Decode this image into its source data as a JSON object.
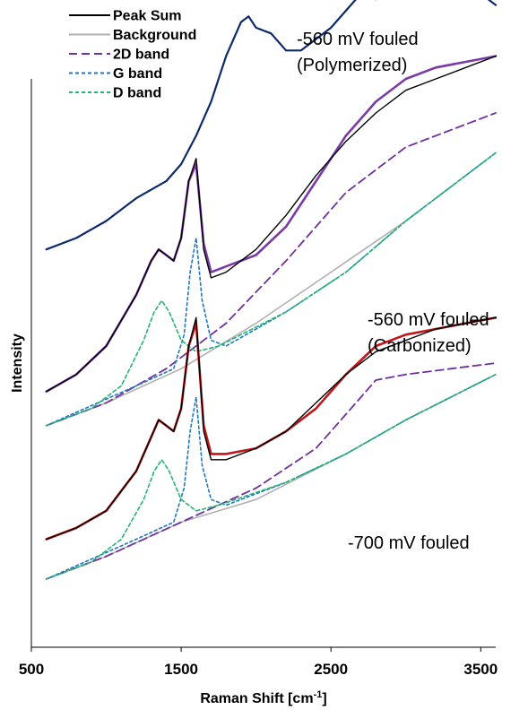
{
  "chart_data": {
    "type": "line",
    "xlabel": "Raman Shift [cm",
    "xlabel_sup": "-1",
    "xlabel_end": "]",
    "ylabel": "Intensity",
    "xlim": [
      500,
      3600
    ],
    "xticks": [
      500,
      1500,
      2500,
      3500
    ],
    "x_tick_labels": [
      "500",
      "1500",
      "2500",
      "3500"
    ],
    "y_ticks_shown": false,
    "legend_position": "top-left",
    "legend": [
      {
        "name": "Peak Sum",
        "color": "#000000",
        "style": "solid"
      },
      {
        "name": "Background",
        "color": "#b0b0b0",
        "style": "solid"
      },
      {
        "name": "2D band",
        "color": "#7030a0",
        "style": "long-dash"
      },
      {
        "name": "G band",
        "color": "#1f77c4",
        "style": "short-dash"
      },
      {
        "name": "D band",
        "color": "#22b573",
        "style": "short-dash"
      }
    ],
    "annotations": [
      {
        "lines": [
          "-560 mV  fouled",
          "(Polymerized)"
        ]
      },
      {
        "lines": [
          "-560 mV  fouled",
          "(Carbonized)"
        ]
      },
      {
        "lines": [
          "-700 mV  fouled"
        ]
      }
    ],
    "colors": {
      "polymerized": "#0d2a6b",
      "carbonized": "#7a3aa8",
      "v700": "#c0161b",
      "peak_sum": "#000000",
      "background": "#b0b0b0",
      "band_2d": "#7030a0",
      "band_g": "#1f77c4",
      "band_d": "#22b573"
    },
    "series": [
      {
        "key": "polymerized",
        "x": [
          600,
          800,
          1000,
          1200,
          1400,
          1500,
          1600,
          1700,
          1800,
          1900,
          1950,
          2000,
          2100,
          2200,
          2300,
          2400,
          2500,
          2600,
          2700,
          2800,
          2900,
          3000,
          3100,
          3200,
          3300,
          3400,
          3500,
          3600
        ],
        "y": [
          0.7,
          0.72,
          0.75,
          0.79,
          0.82,
          0.85,
          0.9,
          0.96,
          1.04,
          1.1,
          1.11,
          1.09,
          1.08,
          1.05,
          1.05,
          1.07,
          1.09,
          1.12,
          1.15,
          1.14,
          1.15,
          1.16,
          1.18,
          1.17,
          1.18,
          1.17,
          1.15,
          1.13
        ]
      },
      {
        "key": "carbonized_data",
        "x": [
          600,
          800,
          1000,
          1200,
          1300,
          1350,
          1400,
          1450,
          1500,
          1550,
          1600,
          1650,
          1700,
          1800,
          2000,
          2200,
          2400,
          2600,
          2800,
          3000,
          3200,
          3400,
          3600
        ],
        "y": [
          0.45,
          0.48,
          0.53,
          0.62,
          0.68,
          0.7,
          0.69,
          0.68,
          0.72,
          0.82,
          0.85,
          0.71,
          0.66,
          0.67,
          0.69,
          0.74,
          0.82,
          0.9,
          0.96,
          1.0,
          1.02,
          1.03,
          1.04
        ]
      },
      {
        "key": "carbonized_sum",
        "x": [
          600,
          800,
          1000,
          1200,
          1300,
          1350,
          1400,
          1450,
          1500,
          1550,
          1600,
          1650,
          1700,
          1800,
          2000,
          2200,
          2400,
          2600,
          2800,
          3000,
          3200,
          3400,
          3600
        ],
        "y": [
          0.45,
          0.48,
          0.53,
          0.62,
          0.68,
          0.7,
          0.69,
          0.68,
          0.72,
          0.82,
          0.86,
          0.7,
          0.65,
          0.66,
          0.7,
          0.76,
          0.83,
          0.89,
          0.94,
          0.98,
          1.0,
          1.02,
          1.04
        ]
      },
      {
        "key": "carbonized_background",
        "x": [
          600,
          1000,
          1500,
          2000,
          2500,
          3000,
          3600
        ],
        "y": [
          0.39,
          0.43,
          0.49,
          0.57,
          0.66,
          0.75,
          0.87
        ]
      },
      {
        "key": "carbonized_2d",
        "x": [
          600,
          1000,
          1400,
          1800,
          2200,
          2600,
          3000,
          3400,
          3600
        ],
        "y": [
          0.39,
          0.43,
          0.49,
          0.57,
          0.68,
          0.8,
          0.88,
          0.92,
          0.94
        ]
      },
      {
        "key": "carbonized_g",
        "x": [
          600,
          1200,
          1450,
          1520,
          1560,
          1600,
          1640,
          1700,
          1800,
          2200,
          2600,
          3000,
          3600
        ],
        "y": [
          0.39,
          0.46,
          0.49,
          0.55,
          0.66,
          0.72,
          0.61,
          0.54,
          0.53,
          0.59,
          0.66,
          0.75,
          0.87
        ]
      },
      {
        "key": "carbonized_d",
        "x": [
          600,
          900,
          1100,
          1250,
          1320,
          1370,
          1420,
          1500,
          1600,
          1750,
          2200,
          2600,
          3000,
          3600
        ],
        "y": [
          0.39,
          0.42,
          0.46,
          0.54,
          0.59,
          0.61,
          0.59,
          0.54,
          0.52,
          0.53,
          0.59,
          0.66,
          0.75,
          0.87
        ]
      },
      {
        "key": "v700_data",
        "x": [
          600,
          800,
          1000,
          1200,
          1300,
          1350,
          1400,
          1450,
          1500,
          1550,
          1600,
          1650,
          1700,
          1800,
          2000,
          2200,
          2400,
          2600,
          2800,
          3000,
          3200,
          3400,
          3600
        ],
        "y": [
          0.19,
          0.21,
          0.24,
          0.31,
          0.37,
          0.4,
          0.39,
          0.38,
          0.42,
          0.53,
          0.57,
          0.39,
          0.34,
          0.34,
          0.35,
          0.38,
          0.42,
          0.48,
          0.53,
          0.55,
          0.56,
          0.57,
          0.58
        ]
      },
      {
        "key": "v700_sum",
        "x": [
          600,
          800,
          1000,
          1200,
          1300,
          1350,
          1400,
          1450,
          1500,
          1550,
          1600,
          1650,
          1700,
          1800,
          2000,
          2200,
          2400,
          2600,
          2800,
          3000,
          3200,
          3400,
          3600
        ],
        "y": [
          0.19,
          0.21,
          0.24,
          0.31,
          0.37,
          0.4,
          0.39,
          0.38,
          0.42,
          0.53,
          0.58,
          0.38,
          0.33,
          0.33,
          0.35,
          0.38,
          0.43,
          0.48,
          0.52,
          0.54,
          0.56,
          0.57,
          0.58
        ]
      },
      {
        "key": "v700_2d",
        "x": [
          600,
          1000,
          1500,
          2000,
          2400,
          2600,
          2800,
          3000,
          3300,
          3600
        ],
        "y": [
          0.12,
          0.16,
          0.22,
          0.28,
          0.35,
          0.41,
          0.47,
          0.48,
          0.49,
          0.5
        ]
      },
      {
        "key": "v700_g",
        "x": [
          600,
          1200,
          1450,
          1520,
          1560,
          1600,
          1640,
          1700,
          1800,
          2200,
          2600,
          3000,
          3600
        ],
        "y": [
          0.12,
          0.19,
          0.22,
          0.28,
          0.38,
          0.44,
          0.32,
          0.26,
          0.25,
          0.29,
          0.34,
          0.4,
          0.48
        ]
      },
      {
        "key": "v700_d",
        "x": [
          600,
          900,
          1100,
          1250,
          1320,
          1370,
          1420,
          1500,
          1600,
          1750,
          2200,
          2600,
          3000,
          3600
        ],
        "y": [
          0.12,
          0.15,
          0.19,
          0.26,
          0.31,
          0.33,
          0.31,
          0.26,
          0.24,
          0.25,
          0.29,
          0.34,
          0.4,
          0.48
        ]
      },
      {
        "key": "v700_background",
        "x": [
          600,
          1000,
          1500,
          2000,
          2600,
          3000,
          3600
        ],
        "y": [
          0.12,
          0.16,
          0.22,
          0.26,
          0.34,
          0.4,
          0.48
        ]
      }
    ]
  }
}
